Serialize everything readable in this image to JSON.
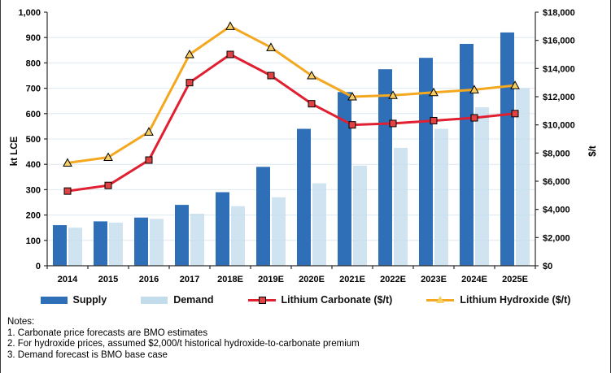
{
  "figure": {
    "kind": "combo bar + line chart",
    "left_axis_title": "kt LCE",
    "right_axis_title": "$/t"
  },
  "legend": {
    "supply": "Supply",
    "demand": "Demand",
    "carbonate": "Lithium Carbonate ($/t)",
    "hydroxide": "Lithium Hydroxide ($/t)"
  },
  "notes": {
    "heading": "Notes:",
    "line1": "1. Carbonate price forecasts are BMO estimates",
    "line2": "2. For hydroxide prices, assumed $2,000/t historical hydroxide-to-carbonate premium",
    "line3": "3. Demand forecast is BMO base case"
  },
  "colors": {
    "supply_bar": "#2E6FB8",
    "demand_bar": "#C3DCEC",
    "carbonate_line": "#E02030",
    "carbonate_marker_fill": "#E04343",
    "hydroxide_line": "#F3A81F",
    "hydroxide_marker_fill": "#F6CE63",
    "marker_stroke": "#000000",
    "axis": "#2b2b2b",
    "grid": "#DDE8F0",
    "tick_text": "#000000"
  },
  "chart_data": {
    "type": "bar",
    "subtype": "combo: clustered bars (left axis, kt LCE) + two lines (right axis, $/t)",
    "categories": [
      "2014",
      "2015",
      "2016",
      "2017",
      "2018E",
      "2019E",
      "2020E",
      "2021E",
      "2022E",
      "2023E",
      "2024E",
      "2025E"
    ],
    "series": [
      {
        "name": "Supply",
        "type": "bar",
        "axis": "left",
        "values": [
          160,
          175,
          190,
          240,
          290,
          390,
          540,
          685,
          775,
          820,
          875,
          920
        ]
      },
      {
        "name": "Demand",
        "type": "bar",
        "axis": "left",
        "values": [
          150,
          170,
          185,
          205,
          235,
          270,
          325,
          395,
          465,
          540,
          625,
          700
        ]
      },
      {
        "name": "Lithium Carbonate ($/t)",
        "type": "line",
        "axis": "right",
        "marker": "square",
        "values": [
          5300,
          5700,
          7500,
          13000,
          15000,
          13500,
          11500,
          10000,
          10100,
          10300,
          10500,
          10800
        ]
      },
      {
        "name": "Lithium Hydroxide ($/t)",
        "type": "line",
        "axis": "right",
        "marker": "triangle",
        "values": [
          7300,
          7700,
          9500,
          15000,
          17000,
          15500,
          13500,
          12000,
          12100,
          12300,
          12500,
          12800
        ]
      }
    ],
    "left_axis": {
      "title": "kt LCE",
      "min": 0,
      "max": 1000,
      "step": 100
    },
    "right_axis": {
      "title": "$/t",
      "min": 0,
      "max": 18000,
      "step": 2000,
      "tick_prefix": "$"
    },
    "grid": true,
    "legend_position": "bottom",
    "title": ""
  }
}
